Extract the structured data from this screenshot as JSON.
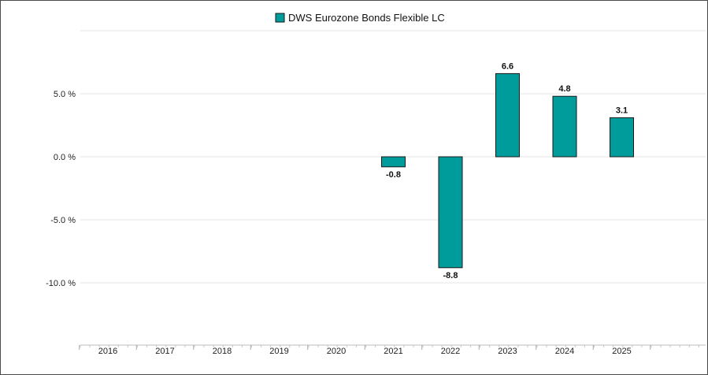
{
  "chart_data": {
    "type": "bar",
    "categories": [
      "2016",
      "2017",
      "2018",
      "2019",
      "2020",
      "2021",
      "2022",
      "2023",
      "2024",
      "2025"
    ],
    "series": [
      {
        "name": "DWS Eurozone Bonds Flexible LC",
        "values": [
          null,
          null,
          null,
          null,
          null,
          -0.8,
          -8.8,
          6.6,
          4.8,
          3.1
        ],
        "labels": [
          "",
          "",
          "",
          "",
          "",
          "-0.8",
          "-8.8",
          "6.6",
          "4.8",
          "3.1"
        ],
        "color": "#009c9c"
      }
    ],
    "yticks": [
      5.0,
      0.0,
      -5.0,
      -10.0
    ],
    "ytick_labels": [
      "5.0 %",
      "0.0 %",
      "-5.0 %",
      "-10.0 %"
    ],
    "ylim": [
      -15,
      10
    ],
    "grid": true,
    "legend_position": "top-center"
  }
}
